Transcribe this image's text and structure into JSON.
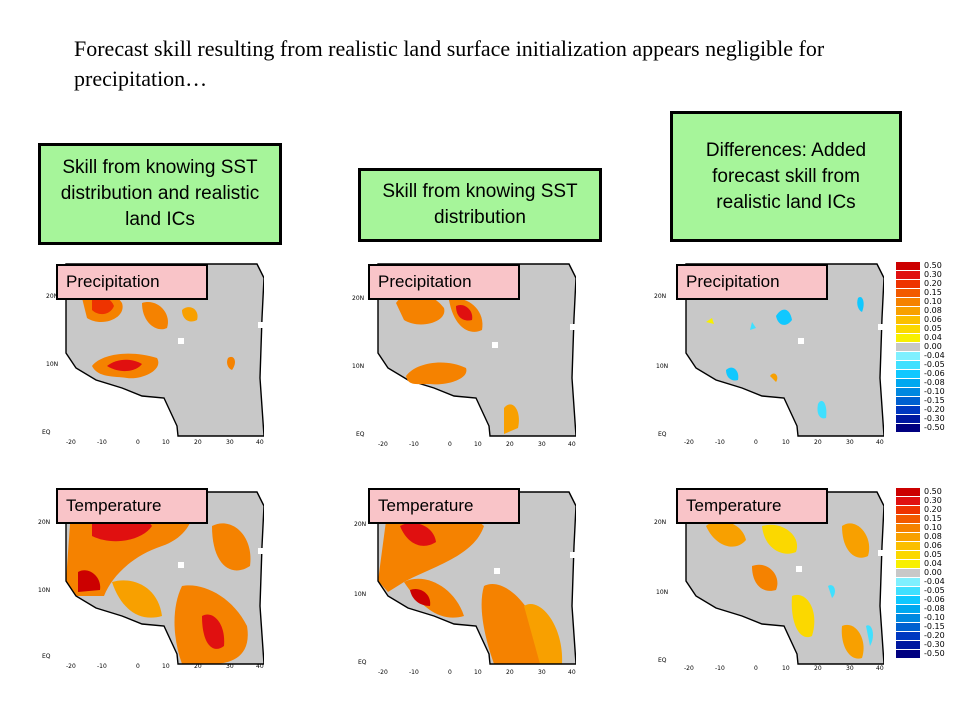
{
  "title": "Forecast skill resulting from realistic land surface initialization appears negligible for precipitation…",
  "headers": [
    "Skill from knowing SST distribution and realistic land ICs",
    "Skill from knowing SST distribution",
    "Differences: Added forecast skill from realistic land ICs"
  ],
  "panel_labels": {
    "precip": "Precipitation",
    "temp": "Temperature"
  },
  "map_axes": {
    "x_ticks": [
      "-20",
      "-10",
      "0",
      "10",
      "20",
      "30",
      "40"
    ],
    "y_ticks": [
      "20N",
      "10N",
      "EQ"
    ]
  },
  "colorbar": {
    "labels": [
      "0.50",
      "0.30",
      "0.20",
      "0.15",
      "0.10",
      "0.08",
      "0.06",
      "0.05",
      "0.04",
      "0.00",
      "-0.04",
      "-0.05",
      "-0.06",
      "-0.08",
      "-0.10",
      "-0.15",
      "-0.20",
      "-0.30",
      "-0.50"
    ],
    "colors": [
      "#cc0000",
      "#e01010",
      "#ee3300",
      "#f25a00",
      "#f58200",
      "#f8a000",
      "#fbbf00",
      "#fbd800",
      "#f8f000",
      "#c8c8c8",
      "#7ff0ff",
      "#40e0ff",
      "#10c8ff",
      "#00a8f0",
      "#0088e0",
      "#0060d0",
      "#0038c0",
      "#0018a0",
      "#000080"
    ]
  }
}
